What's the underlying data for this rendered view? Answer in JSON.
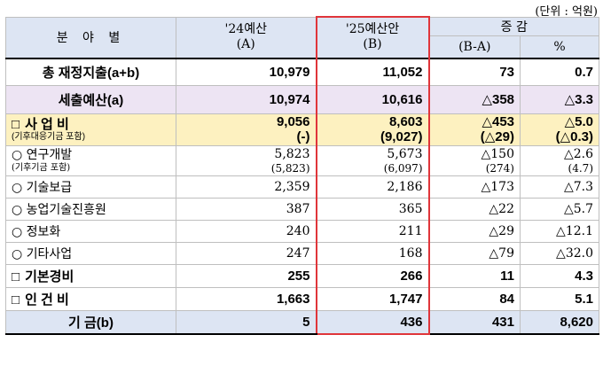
{
  "unit_note": "(단위 : 억원)",
  "header": {
    "category": "분 야 별",
    "col_a": [
      "'24예산",
      "(A)"
    ],
    "col_b": [
      "'25예산안",
      "(B)"
    ],
    "change": "증 감",
    "change_abs": "(B-A)",
    "change_pct": "%"
  },
  "rows": {
    "total": {
      "label": "총 재정지출(a+b)",
      "a": "10,979",
      "b": "11,052",
      "diff": "73",
      "pct": "0.7"
    },
    "revenue": {
      "label": "세출예산(a)",
      "a": "10,974",
      "b": "10,616",
      "diff": "△358",
      "pct": "△3.3"
    },
    "business": {
      "sq": "□",
      "label": "사 업 비",
      "sub": "(기후대응기금 포함)",
      "a": "9,056",
      "a2": "(-)",
      "b": "8,603",
      "b2": "(9,027)",
      "diff": "△453",
      "diff2": "(△29)",
      "pct": "△5.0",
      "pct2": "(△0.3)"
    },
    "rnd": {
      "label": "○ 연구개발",
      "sub": "(기후기금 포함)",
      "a": "5,823",
      "a2": "(5,823)",
      "b": "5,673",
      "b2": "(6,097)",
      "diff": "△150",
      "diff2": "(274)",
      "pct": "△2.6",
      "pct2": "(4.7)"
    },
    "tech": {
      "label": "○ 기술보급",
      "a": "2,359",
      "b": "2,186",
      "diff": "△173",
      "pct": "△7.3"
    },
    "promo": {
      "label": "○ 농업기술진흥원",
      "a": "387",
      "b": "365",
      "diff": "△22",
      "pct": "△5.7"
    },
    "info": {
      "label": "○ 정보화",
      "a": "240",
      "b": "211",
      "diff": "△29",
      "pct": "△12.1"
    },
    "etc": {
      "label": "○ 기타사업",
      "a": "247",
      "b": "168",
      "diff": "△79",
      "pct": "△32.0"
    },
    "basic": {
      "sq": "□",
      "label": "기본경비",
      "a": "255",
      "b": "266",
      "diff": "11",
      "pct": "4.3"
    },
    "labor": {
      "sq": "□",
      "label": "인 건 비",
      "a": "1,663",
      "b": "1,747",
      "diff": "84",
      "pct": "5.1"
    },
    "fund": {
      "label": "기 금(b)",
      "a": "5",
      "b": "436",
      "diff": "431",
      "pct": "8,620"
    }
  }
}
